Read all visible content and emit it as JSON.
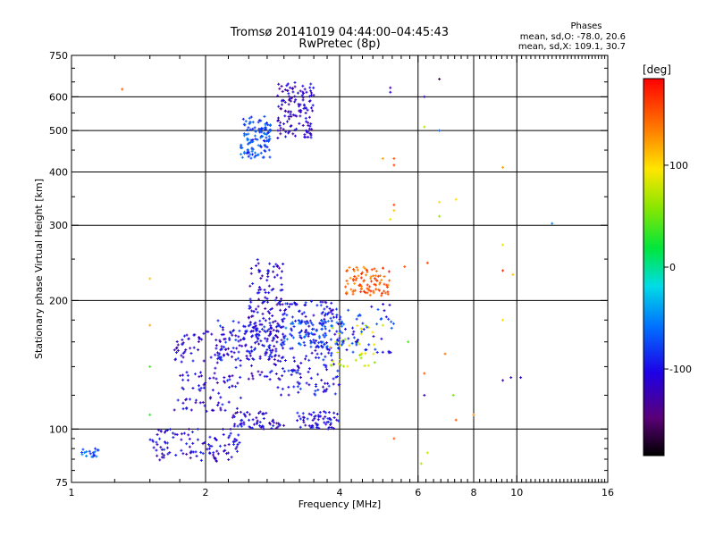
{
  "header": {
    "title_line1": "Tromsø 20141019 04:44:00–04:45:43",
    "title_line2": "RwPretec (8p)",
    "phase_title": "Phases",
    "phase_o": "mean, sd,O: -78.0, 20.6",
    "phase_x": "mean, sd,X: 109.1, 30.7"
  },
  "colorbar": {
    "unit_label": "[deg]",
    "ticks": [
      {
        "value": 100,
        "label": "100"
      },
      {
        "value": 0,
        "label": "0"
      },
      {
        "value": -100,
        "label": "-100"
      }
    ],
    "range": [
      -185,
      185
    ]
  },
  "chart_data": {
    "type": "scatter",
    "title": "Tromsø 20141019 04:44:00–04:45:43",
    "subtitle": "RwPretec (8p)",
    "xlabel": "Frequency [MHz]",
    "ylabel": "Stationary phase Virtual Height [km]",
    "xscale": "log",
    "yscale": "log",
    "xlim": [
      1,
      16
    ],
    "ylim": [
      75,
      750
    ],
    "xticks": [
      1,
      2,
      4,
      6,
      8,
      10,
      16
    ],
    "xtick_labels": [
      "1",
      "2",
      "4",
      "6",
      "8",
      "10",
      "16"
    ],
    "x_gridlines": [
      2,
      4,
      6,
      8,
      10
    ],
    "yticks": [
      75,
      100,
      200,
      300,
      400,
      500,
      600,
      750
    ],
    "ytick_labels": [
      "75",
      "100",
      "200",
      "300",
      "400",
      "500",
      "600",
      "750"
    ],
    "y_gridlines": [
      100,
      200,
      300,
      400,
      500,
      600
    ],
    "color_label": "[deg]",
    "color_range": [
      -185,
      185
    ],
    "clusters": [
      {
        "x": [
          2.4,
          2.8
        ],
        "y": [
          430,
          540
        ],
        "phase": -75,
        "count": 120
      },
      {
        "x": [
          2.9,
          3.5
        ],
        "y": [
          480,
          650
        ],
        "phase": -115,
        "count": 130
      },
      {
        "x": [
          2.5,
          3.0
        ],
        "y": [
          130,
          250
        ],
        "phase": -110,
        "count": 160
      },
      {
        "x": [
          1.7,
          2.4
        ],
        "y": [
          110,
          170
        ],
        "phase": -110,
        "count": 140
      },
      {
        "x": [
          2.1,
          2.9
        ],
        "y": [
          145,
          180
        ],
        "phase": -100,
        "count": 110
      },
      {
        "x": [
          2.9,
          4.0
        ],
        "y": [
          120,
          200
        ],
        "phase": -100,
        "count": 200
      },
      {
        "x": [
          3.0,
          4.1
        ],
        "y": [
          155,
          180
        ],
        "phase": -75,
        "count": 90
      },
      {
        "x": [
          3.2,
          4.0
        ],
        "y": [
          100,
          110
        ],
        "phase": -105,
        "count": 60
      },
      {
        "x": [
          2.3,
          3.0
        ],
        "y": [
          100,
          110
        ],
        "phase": -110,
        "count": 60
      },
      {
        "x": [
          1.5,
          2.4
        ],
        "y": [
          84,
          100
        ],
        "phase": -110,
        "count": 110
      },
      {
        "x": [
          1.05,
          1.15
        ],
        "y": [
          86,
          90
        ],
        "phase": -70,
        "count": 18
      },
      {
        "x": [
          4.1,
          5.2
        ],
        "y": [
          205,
          240
        ],
        "phase": 150,
        "count": 90
      },
      {
        "x": [
          3.8,
          4.8
        ],
        "y": [
          140,
          175
        ],
        "phase": 80,
        "count": 40
      },
      {
        "x": [
          4.0,
          5.3
        ],
        "y": [
          150,
          200
        ],
        "phase": -90,
        "count": 50
      }
    ],
    "points": [
      {
        "x": 1.3,
        "y": 625,
        "phase": 150
      },
      {
        "x": 1.5,
        "y": 225,
        "phase": 110
      },
      {
        "x": 1.5,
        "y": 175,
        "phase": 120
      },
      {
        "x": 1.5,
        "y": 140,
        "phase": 40
      },
      {
        "x": 1.5,
        "y": 108,
        "phase": 30
      },
      {
        "x": 5.2,
        "y": 630,
        "phase": -130
      },
      {
        "x": 5.2,
        "y": 615,
        "phase": -110
      },
      {
        "x": 6.2,
        "y": 600,
        "phase": -120
      },
      {
        "x": 6.7,
        "y": 660,
        "phase": -160
      },
      {
        "x": 6.7,
        "y": 500,
        "phase": -60
      },
      {
        "x": 6.2,
        "y": 510,
        "phase": 70
      },
      {
        "x": 5.0,
        "y": 430,
        "phase": 120
      },
      {
        "x": 5.3,
        "y": 430,
        "phase": 150
      },
      {
        "x": 5.3,
        "y": 415,
        "phase": 160
      },
      {
        "x": 5.3,
        "y": 335,
        "phase": 160
      },
      {
        "x": 5.3,
        "y": 325,
        "phase": 110
      },
      {
        "x": 5.2,
        "y": 310,
        "phase": 90
      },
      {
        "x": 6.7,
        "y": 340,
        "phase": 100
      },
      {
        "x": 6.7,
        "y": 315,
        "phase": 60
      },
      {
        "x": 7.3,
        "y": 345,
        "phase": 100
      },
      {
        "x": 9.3,
        "y": 410,
        "phase": 120
      },
      {
        "x": 9.3,
        "y": 270,
        "phase": 90
      },
      {
        "x": 9.3,
        "y": 235,
        "phase": 170
      },
      {
        "x": 9.8,
        "y": 230,
        "phase": 110
      },
      {
        "x": 12.0,
        "y": 303,
        "phase": -50
      },
      {
        "x": 5.6,
        "y": 240,
        "phase": 150
      },
      {
        "x": 6.3,
        "y": 245,
        "phase": 160
      },
      {
        "x": 9.3,
        "y": 180,
        "phase": 100
      },
      {
        "x": 9.3,
        "y": 130,
        "phase": -130
      },
      {
        "x": 9.7,
        "y": 132,
        "phase": -120
      },
      {
        "x": 10.2,
        "y": 132,
        "phase": -110
      },
      {
        "x": 6.9,
        "y": 150,
        "phase": 140
      },
      {
        "x": 6.2,
        "y": 135,
        "phase": 150
      },
      {
        "x": 6.2,
        "y": 120,
        "phase": -130
      },
      {
        "x": 7.2,
        "y": 120,
        "phase": 50
      },
      {
        "x": 7.3,
        "y": 105,
        "phase": 150
      },
      {
        "x": 8.0,
        "y": 108,
        "phase": 130
      },
      {
        "x": 5.3,
        "y": 95,
        "phase": 150
      },
      {
        "x": 6.1,
        "y": 83,
        "phase": 70
      },
      {
        "x": 6.3,
        "y": 88,
        "phase": 80
      },
      {
        "x": 5.0,
        "y": 175,
        "phase": 80
      },
      {
        "x": 5.7,
        "y": 160,
        "phase": 40
      }
    ]
  }
}
